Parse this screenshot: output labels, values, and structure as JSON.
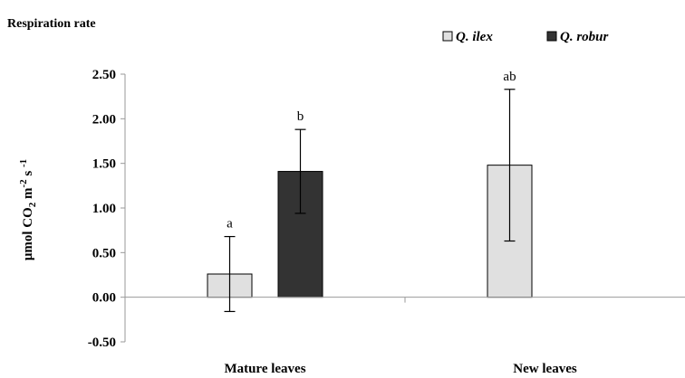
{
  "chart_data": {
    "type": "bar",
    "title": "Respiration rate",
    "ylabel": "μmol CO2 m-2 s -1",
    "ylim": [
      -0.5,
      2.5
    ],
    "yticks": [
      "2.50",
      "2.00",
      "1.50",
      "1.00",
      "0.50",
      "0.00",
      "-0.50"
    ],
    "ytick_values": [
      2.5,
      2.0,
      1.5,
      1.0,
      0.5,
      0.0,
      -0.5
    ],
    "categories": [
      "Mature leaves",
      "New leaves"
    ],
    "series": [
      {
        "name": "Q. ilex",
        "color": "#e0e0e0",
        "values": [
          0.26,
          1.48
        ],
        "errors": [
          0.42,
          0.85
        ],
        "annotations": [
          "a",
          "ab"
        ]
      },
      {
        "name": "Q. robur",
        "color": "#333333",
        "values": [
          1.41,
          null
        ],
        "errors": [
          0.47,
          null
        ],
        "annotations": [
          "b",
          ""
        ]
      }
    ],
    "legend_position": "top-right",
    "grid": false
  }
}
